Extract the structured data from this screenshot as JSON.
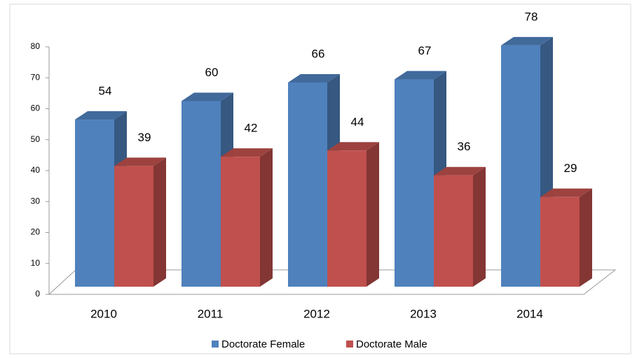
{
  "chart_data": {
    "type": "bar3d",
    "categories": [
      "2010",
      "2011",
      "2012",
      "2013",
      "2014"
    ],
    "series": [
      {
        "name": "Doctorate Female",
        "color": "#4f81bd",
        "values": [
          54,
          60,
          66,
          67,
          78
        ]
      },
      {
        "name": "Doctorate Male",
        "color": "#c0504d",
        "values": [
          39,
          42,
          44,
          36,
          29
        ]
      }
    ],
    "ylim": [
      0,
      80
    ],
    "yticks": [
      0,
      10,
      20,
      30,
      40,
      50,
      60,
      70,
      80
    ],
    "legend": "bottom"
  }
}
